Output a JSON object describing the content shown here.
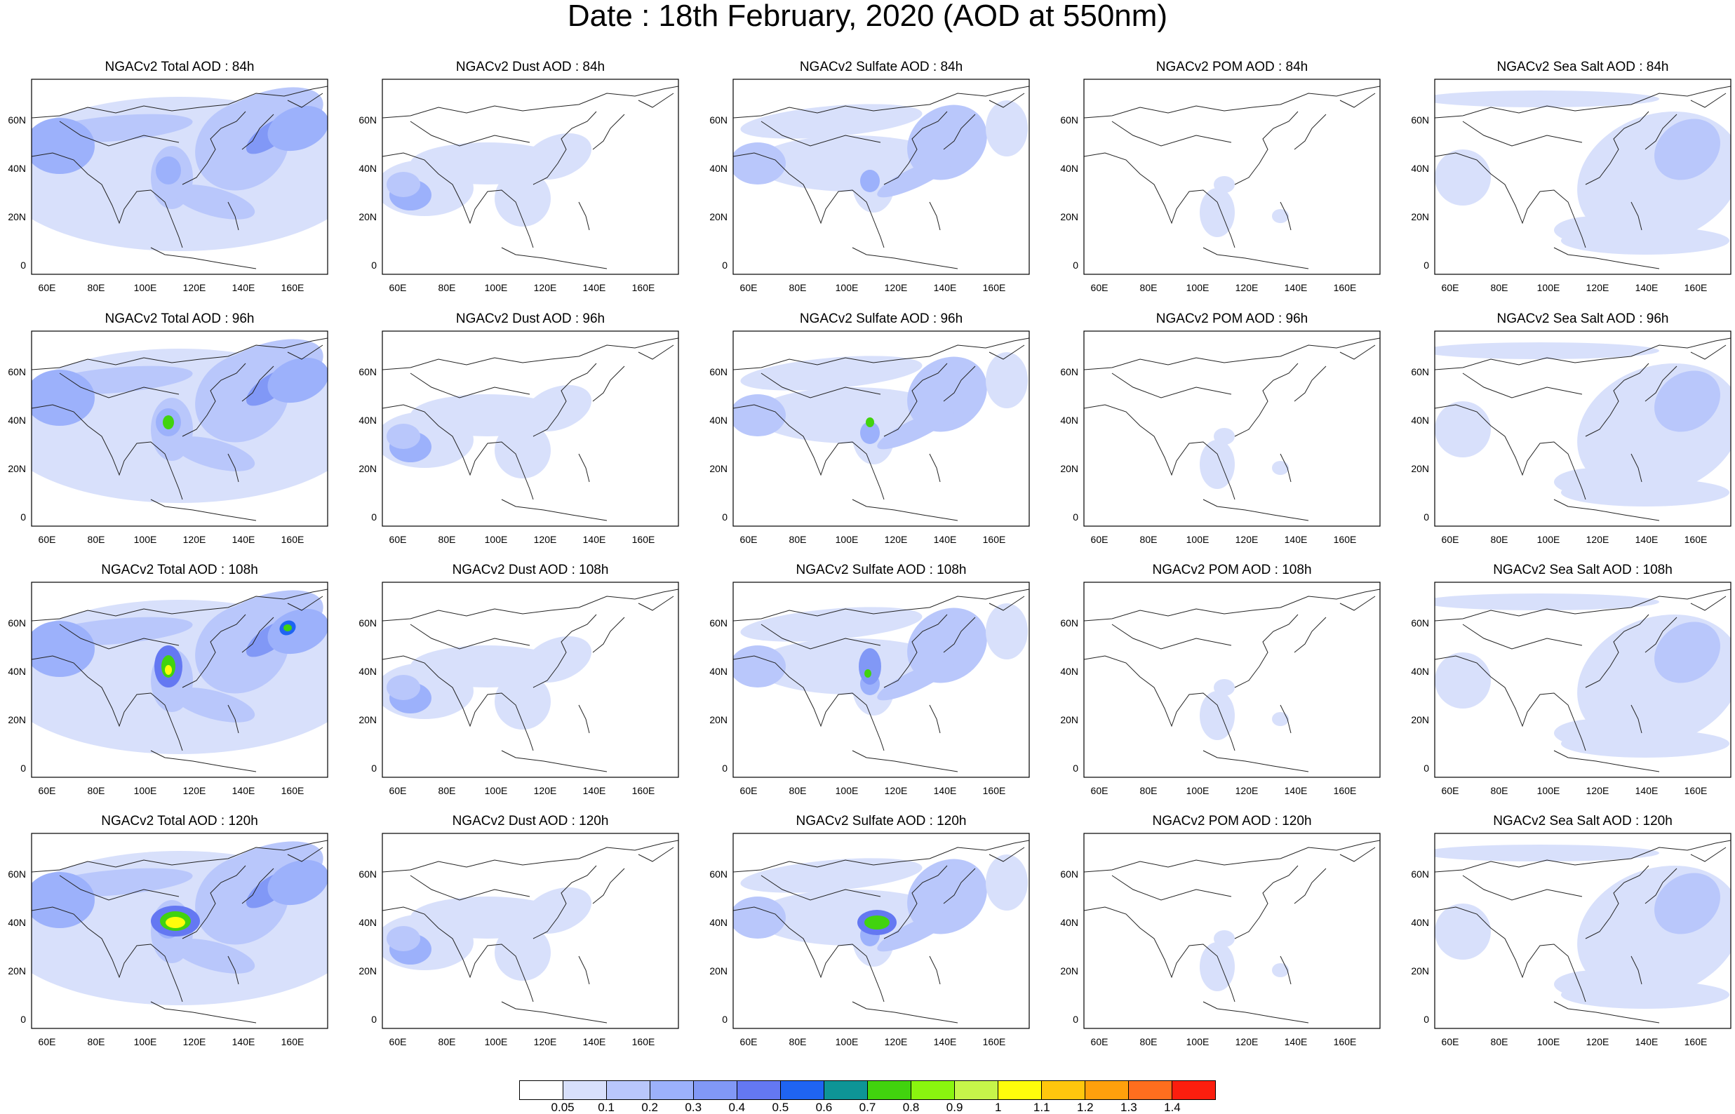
{
  "title": "Date : 18th February, 2020 (AOD at 550nm)",
  "axes": {
    "x_ticks": [
      "60E",
      "80E",
      "100E",
      "120E",
      "140E",
      "160E"
    ],
    "y_ticks": [
      "60N",
      "40N",
      "20N",
      "0"
    ]
  },
  "colorbar": {
    "labels": [
      "0.05",
      "0.1",
      "0.2",
      "0.3",
      "0.4",
      "0.5",
      "0.6",
      "0.7",
      "0.8",
      "0.9",
      "1",
      "1.1",
      "1.2",
      "1.3",
      "1.4"
    ],
    "colors": [
      "#ffffff",
      "#d8e0fb",
      "#b9c7fb",
      "#9cb1fb",
      "#8198f6",
      "#6478f2",
      "#1f64f2",
      "#0e9596",
      "#41d30e",
      "#8af50f",
      "#c6f54a",
      "#fffd0b",
      "#ffc60d",
      "#ffa00c",
      "#ff6e1e",
      "#fb1e0e"
    ]
  },
  "rows": [
    {
      "panels": [
        {
          "title": "NGACv2 Total AOD : 84h",
          "species": "total"
        },
        {
          "title": "NGACv2 Dust AOD : 84h",
          "species": "dust"
        },
        {
          "title": "NGACv2 Sulfate AOD : 84h",
          "species": "sulfate"
        },
        {
          "title": "NGACv2 POM AOD : 84h",
          "species": "pom"
        },
        {
          "title": "NGACv2 Sea Salt AOD : 84h",
          "species": "seasalt"
        }
      ]
    },
    {
      "panels": [
        {
          "title": "NGACv2 Total AOD : 96h",
          "species": "total"
        },
        {
          "title": "NGACv2 Dust AOD : 96h",
          "species": "dust"
        },
        {
          "title": "NGACv2 Sulfate AOD : 96h",
          "species": "sulfate"
        },
        {
          "title": "NGACv2 POM AOD : 96h",
          "species": "pom"
        },
        {
          "title": "NGACv2 Sea Salt AOD : 96h",
          "species": "seasalt"
        }
      ]
    },
    {
      "panels": [
        {
          "title": "NGACv2 Total AOD : 108h",
          "species": "total"
        },
        {
          "title": "NGACv2 Dust AOD : 108h",
          "species": "dust"
        },
        {
          "title": "NGACv2 Sulfate AOD : 108h",
          "species": "sulfate"
        },
        {
          "title": "NGACv2 POM AOD : 108h",
          "species": "pom"
        },
        {
          "title": "NGACv2 Sea Salt AOD : 108h",
          "species": "seasalt"
        }
      ]
    },
    {
      "panels": [
        {
          "title": "NGACv2 Total AOD : 120h",
          "species": "total"
        },
        {
          "title": "NGACv2 Dust AOD : 120h",
          "species": "dust"
        },
        {
          "title": "NGACv2 Sulfate AOD : 120h",
          "species": "sulfate"
        },
        {
          "title": "NGACv2 POM AOD : 120h",
          "species": "pom"
        },
        {
          "title": "NGACv2 Sea Salt  AOD : 120h",
          "species": "seasalt"
        }
      ]
    }
  ]
}
